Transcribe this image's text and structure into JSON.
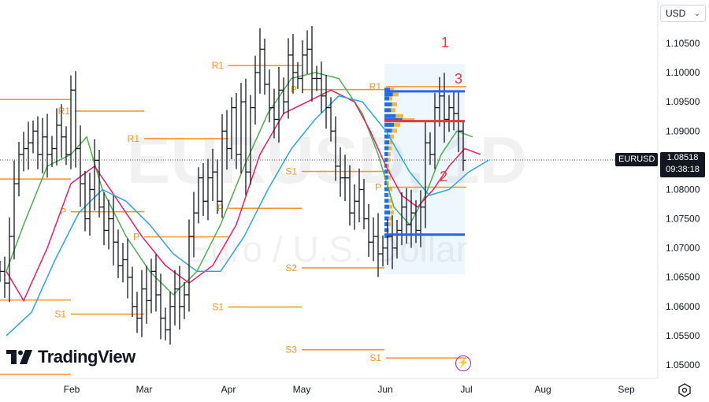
{
  "currency": {
    "label": "USD"
  },
  "watermark": {
    "symbol": "EURUSD, 1D",
    "description": "Euro / U.S. Dollar"
  },
  "logo": {
    "text": "TradingView"
  },
  "price_tag": {
    "label": "EURUSD"
  },
  "last_price": {
    "value": "1.08518",
    "countdown": "09:38:18"
  },
  "annotations": {
    "n1": "1",
    "n2": "2",
    "n3": "3"
  },
  "colors": {
    "up_down": "#131722",
    "pivot": "#f7931e",
    "ma_fast": "#4caf50",
    "ma_mid": "#e91e63",
    "ma_slow": "#26a9d8",
    "vp_up": "#1f6fdc",
    "vp_down": "#f7b731",
    "level_blue": "#2962ff",
    "level_red": "#e53935",
    "annotation": "#e53935"
  },
  "chart_data": {
    "type": "candlestick",
    "style": "bars",
    "interval": "1D",
    "ylim": [
      1.048,
      1.113
    ],
    "y_ticks": [
      "1.10500",
      "1.10000",
      "1.09500",
      "1.09000",
      "1.08500",
      "1.08000",
      "1.07500",
      "1.07000",
      "1.06500",
      "1.06000",
      "1.05500",
      "1.05000"
    ],
    "x_ticks": [
      "Feb",
      "Mar",
      "Apr",
      "May",
      "Jun",
      "Jul",
      "Aug",
      "Sep"
    ],
    "last_price": 1.08518,
    "ohlc_close_path": [
      [
        0,
        1.066
      ],
      [
        6,
        1.064
      ],
      [
        12,
        1.072
      ],
      [
        18,
        1.081
      ],
      [
        24,
        1.086
      ],
      [
        30,
        1.087
      ],
      [
        36,
        1.088
      ],
      [
        42,
        1.09
      ],
      [
        48,
        1.086
      ],
      [
        54,
        1.089
      ],
      [
        60,
        1.086
      ],
      [
        66,
        1.087
      ],
      [
        72,
        1.091
      ],
      [
        78,
        1.089
      ],
      [
        84,
        1.086
      ],
      [
        90,
        1.097
      ],
      [
        96,
        1.087
      ],
      [
        102,
        1.081
      ],
      [
        108,
        1.075
      ],
      [
        114,
        1.08
      ],
      [
        120,
        1.085
      ],
      [
        126,
        1.077
      ],
      [
        132,
        1.073
      ],
      [
        138,
        1.075
      ],
      [
        144,
        1.071
      ],
      [
        150,
        1.067
      ],
      [
        156,
        1.068
      ],
      [
        162,
        1.065
      ],
      [
        168,
        1.06
      ],
      [
        174,
        1.058
      ],
      [
        180,
        1.063
      ],
      [
        186,
        1.061
      ],
      [
        192,
        1.066
      ],
      [
        198,
        1.062
      ],
      [
        204,
        1.058
      ],
      [
        210,
        1.056
      ],
      [
        216,
        1.06
      ],
      [
        222,
        1.063
      ],
      [
        228,
        1.06
      ],
      [
        234,
        1.062
      ],
      [
        240,
        1.072
      ],
      [
        246,
        1.076
      ],
      [
        252,
        1.082
      ],
      [
        258,
        1.078
      ],
      [
        264,
        1.082
      ],
      [
        270,
        1.083
      ],
      [
        276,
        1.078
      ],
      [
        282,
        1.09
      ],
      [
        288,
        1.087
      ],
      [
        294,
        1.094
      ],
      [
        300,
        1.086
      ],
      [
        306,
        1.095
      ],
      [
        312,
        1.083
      ],
      [
        318,
        1.094
      ],
      [
        324,
        1.1
      ],
      [
        330,
        1.104
      ],
      [
        336,
        1.098
      ],
      [
        342,
        1.094
      ],
      [
        348,
        1.092
      ],
      [
        354,
        1.097
      ],
      [
        360,
        1.095
      ],
      [
        366,
        1.103
      ],
      [
        372,
        1.1
      ],
      [
        378,
        1.099
      ],
      [
        384,
        1.103
      ],
      [
        390,
        1.104
      ],
      [
        396,
        1.099
      ],
      [
        402,
        1.099
      ],
      [
        408,
        1.096
      ],
      [
        414,
        1.094
      ],
      [
        420,
        1.09
      ],
      [
        426,
        1.084
      ],
      [
        432,
        1.082
      ],
      [
        438,
        1.082
      ],
      [
        444,
        1.076
      ],
      [
        450,
        1.078
      ],
      [
        456,
        1.08
      ],
      [
        462,
        1.075
      ],
      [
        468,
        1.071
      ],
      [
        474,
        1.072
      ],
      [
        480,
        1.069
      ],
      [
        486,
        1.07
      ],
      [
        492,
        1.072
      ],
      [
        498,
        1.07
      ],
      [
        504,
        1.073
      ],
      [
        510,
        1.077
      ],
      [
        516,
        1.074
      ],
      [
        522,
        1.076
      ],
      [
        528,
        1.073
      ],
      [
        534,
        1.077
      ],
      [
        540,
        1.088
      ],
      [
        546,
        1.086
      ],
      [
        552,
        1.094
      ],
      [
        558,
        1.096
      ],
      [
        564,
        1.092
      ],
      [
        570,
        1.094
      ],
      [
        576,
        1.093
      ],
      [
        582,
        1.09
      ],
      [
        588,
        1.085
      ]
    ],
    "moving_averages": [
      {
        "color": "green",
        "points": [
          [
            8,
            1.066
          ],
          [
            30,
            1.074
          ],
          [
            60,
            1.084
          ],
          [
            90,
            1.086
          ],
          [
            110,
            1.089
          ],
          [
            130,
            1.08
          ],
          [
            160,
            1.072
          ],
          [
            190,
            1.066
          ],
          [
            220,
            1.062
          ],
          [
            250,
            1.066
          ],
          [
            280,
            1.074
          ],
          [
            310,
            1.084
          ],
          [
            340,
            1.093
          ],
          [
            370,
            1.099
          ],
          [
            400,
            1.1
          ],
          [
            430,
            1.099
          ],
          [
            460,
            1.093
          ],
          [
            480,
            1.086
          ],
          [
            500,
            1.077
          ],
          [
            520,
            1.074
          ],
          [
            540,
            1.079
          ],
          [
            560,
            1.086
          ],
          [
            580,
            1.09
          ],
          [
            600,
            1.089
          ]
        ]
      },
      {
        "color": "pink",
        "points": [
          [
            8,
            1.066
          ],
          [
            30,
            1.061
          ],
          [
            60,
            1.07
          ],
          [
            90,
            1.081
          ],
          [
            120,
            1.084
          ],
          [
            150,
            1.078
          ],
          [
            180,
            1.072
          ],
          [
            210,
            1.067
          ],
          [
            240,
            1.064
          ],
          [
            270,
            1.067
          ],
          [
            300,
            1.074
          ],
          [
            330,
            1.086
          ],
          [
            360,
            1.093
          ],
          [
            390,
            1.095
          ],
          [
            420,
            1.097
          ],
          [
            450,
            1.095
          ],
          [
            470,
            1.09
          ],
          [
            490,
            1.084
          ],
          [
            510,
            1.079
          ],
          [
            530,
            1.077
          ],
          [
            550,
            1.08
          ],
          [
            570,
            1.084
          ],
          [
            590,
            1.087
          ],
          [
            610,
            1.086
          ]
        ]
      },
      {
        "color": "blue",
        "points": [
          [
            8,
            1.055
          ],
          [
            40,
            1.059
          ],
          [
            70,
            1.068
          ],
          [
            100,
            1.076
          ],
          [
            130,
            1.08
          ],
          [
            160,
            1.078
          ],
          [
            190,
            1.074
          ],
          [
            220,
            1.069
          ],
          [
            250,
            1.066
          ],
          [
            280,
            1.066
          ],
          [
            310,
            1.072
          ],
          [
            340,
            1.08
          ],
          [
            370,
            1.087
          ],
          [
            400,
            1.092
          ],
          [
            430,
            1.096
          ],
          [
            460,
            1.095
          ],
          [
            490,
            1.09
          ],
          [
            520,
            1.083
          ],
          [
            545,
            1.079
          ],
          [
            570,
            1.08
          ],
          [
            595,
            1.083
          ],
          [
            620,
            1.085
          ]
        ]
      }
    ],
    "pivot_levels": [
      {
        "label": "R1",
        "y": 1.0934,
        "x1": 95,
        "x2": 183
      },
      {
        "label": "",
        "y": 1.0954,
        "x1": 0,
        "x2": 90
      },
      {
        "label": "",
        "y": 1.0818,
        "x1": 0,
        "x2": 90
      },
      {
        "label": "P",
        "y": 1.0762,
        "x1": 90,
        "x2": 183
      },
      {
        "label": "",
        "y": 1.0611,
        "x1": 0,
        "x2": 90
      },
      {
        "label": "S1",
        "y": 1.0587,
        "x1": 90,
        "x2": 183
      },
      {
        "label": "",
        "y": 1.0484,
        "x1": 0,
        "x2": 90
      },
      {
        "label": "R1",
        "y": 1.0887,
        "x1": 183,
        "x2": 290
      },
      {
        "label": "P",
        "y": 1.0719,
        "x1": 183,
        "x2": 290
      },
      {
        "label": "R1",
        "y": 1.1012,
        "x1": 290,
        "x2": 383
      },
      {
        "label": "P",
        "y": 1.0768,
        "x1": 290,
        "x2": 383
      },
      {
        "label": "S1",
        "y": 1.0599,
        "x1": 290,
        "x2": 383
      },
      {
        "label": "P",
        "y": 1.0971,
        "x1": 383,
        "x2": 488
      },
      {
        "label": "S1",
        "y": 1.0831,
        "x1": 383,
        "x2": 488
      },
      {
        "label": "S2",
        "y": 1.0666,
        "x1": 383,
        "x2": 488
      },
      {
        "label": "S3",
        "y": 1.0526,
        "x1": 383,
        "x2": 488
      },
      {
        "label": "R1",
        "y": 1.0976,
        "x1": 490,
        "x2": 592
      },
      {
        "label": "P",
        "y": 1.0804,
        "x1": 490,
        "x2": 592
      },
      {
        "label": "S1",
        "y": 1.0512,
        "x1": 490,
        "x2": 592
      }
    ],
    "horizontal_levels": [
      {
        "color": "blue",
        "y": 1.0968,
        "x1": 488,
        "x2": 590
      },
      {
        "color": "red",
        "y": 1.0917,
        "x1": 488,
        "x2": 590
      },
      {
        "color": "blue",
        "y": 1.0723,
        "x1": 488,
        "x2": 590
      }
    ]
  }
}
